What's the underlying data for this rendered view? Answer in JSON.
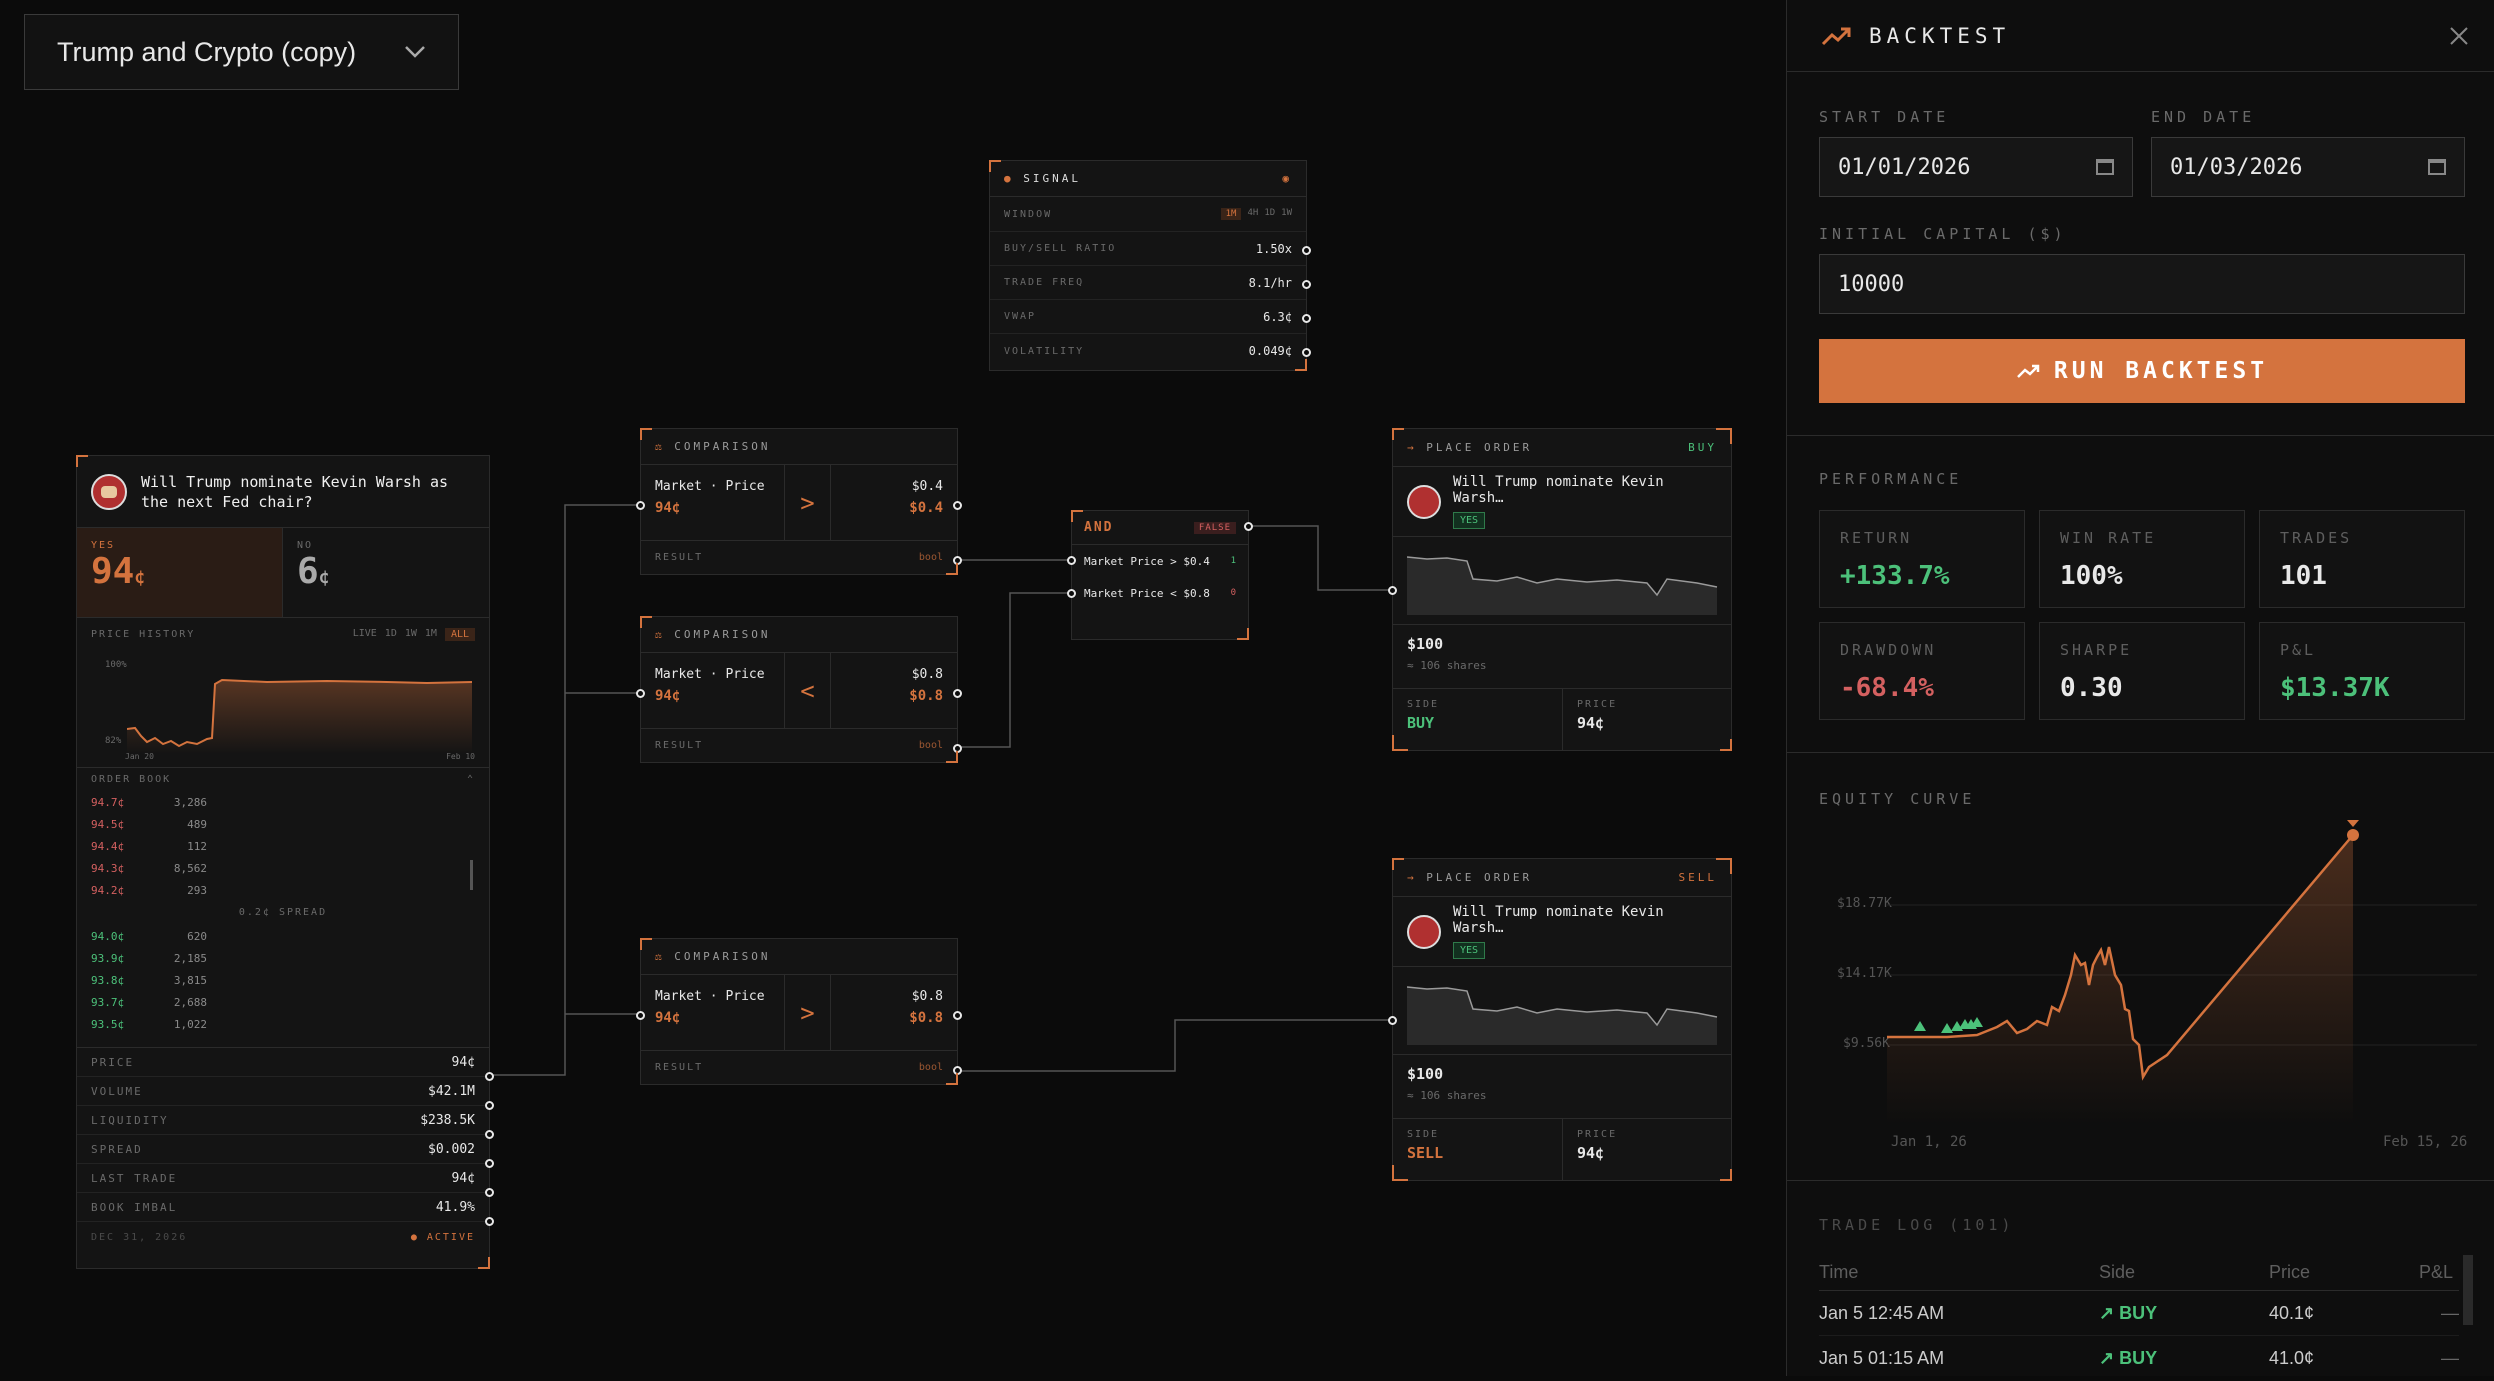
{
  "workflow": {
    "title": "Trump and Crypto (copy)"
  },
  "market": {
    "question": "Will Trump nominate Kevin Warsh as the next Fed chair?",
    "yes_label": "YES",
    "yes_price": "94",
    "no_label": "NO",
    "no_price": "6",
    "cents": "¢",
    "history_label": "PRICE HISTORY",
    "ranges": [
      "LIVE",
      "1D",
      "1W",
      "1M",
      "ALL"
    ],
    "y_top": "100%",
    "y_bot": "82%",
    "x_start": "Jan 20",
    "x_end": "Feb 10",
    "orderbook_label": "ORDER BOOK",
    "asks": [
      [
        "94.7¢",
        "3,286"
      ],
      [
        "94.5¢",
        "489"
      ],
      [
        "94.4¢",
        "112"
      ],
      [
        "94.3¢",
        "8,562"
      ],
      [
        "94.2¢",
        "293"
      ]
    ],
    "spread_label": "0.2¢ SPREAD",
    "bids": [
      [
        "94.0¢",
        "620"
      ],
      [
        "93.9¢",
        "2,185"
      ],
      [
        "93.8¢",
        "3,815"
      ],
      [
        "93.7¢",
        "2,688"
      ],
      [
        "93.5¢",
        "1,022"
      ]
    ],
    "stats": [
      [
        "PRICE",
        "94¢"
      ],
      [
        "VOLUME",
        "$42.1M"
      ],
      [
        "LIQUIDITY",
        "$238.5K"
      ],
      [
        "SPREAD",
        "$0.002"
      ],
      [
        "LAST TRADE",
        "94¢"
      ],
      [
        "BOOK IMBAL",
        "41.9%"
      ]
    ],
    "date": "DEC 31, 2026",
    "status": "ACTIVE"
  },
  "signal": {
    "title": "SIGNAL",
    "window_label": "WINDOW",
    "windows": [
      "1M",
      "4H",
      "1D",
      "1W"
    ],
    "rows": [
      [
        "BUY/SELL RATIO",
        "1.50x"
      ],
      [
        "TRADE FREQ",
        "8.1/hr"
      ],
      [
        "VWAP",
        "6.3¢"
      ],
      [
        "VOLATILITY",
        "0.049¢"
      ]
    ]
  },
  "comparisons": [
    {
      "title": "COMPARISON",
      "left": "Market · Price",
      "left_val": "94¢",
      "op": ">",
      "right": "$0.4",
      "right_val": "$0.4",
      "result": "RESULT",
      "type": "bool"
    },
    {
      "title": "COMPARISON",
      "left": "Market · Price",
      "left_val": "94¢",
      "op": "<",
      "right": "$0.8",
      "right_val": "$0.8",
      "result": "RESULT",
      "type": "bool"
    },
    {
      "title": "COMPARISON",
      "left": "Market · Price",
      "left_val": "94¢",
      "op": ">",
      "right": "$0.8",
      "right_val": "$0.8",
      "result": "RESULT",
      "type": "bool"
    }
  ],
  "and_node": {
    "title": "AND",
    "state": "FALSE",
    "c1": "Market Price > $0.4",
    "v1": "1",
    "c2": "Market Price < $0.8",
    "v2": "0"
  },
  "orders": [
    {
      "title": "PLACE ORDER",
      "side_tag": "BUY",
      "question": "Will Trump nominate Kevin Warsh…",
      "yes": "YES",
      "amount": "$100",
      "shares": "≈ 106 shares",
      "side_label": "SIDE",
      "side": "BUY",
      "price_label": "PRICE",
      "price": "94¢"
    },
    {
      "title": "PLACE ORDER",
      "side_tag": "SELL",
      "question": "Will Trump nominate Kevin Warsh…",
      "yes": "YES",
      "amount": "$100",
      "shares": "≈ 106 shares",
      "side_label": "SIDE",
      "side": "SELL",
      "price_label": "PRICE",
      "price": "94¢"
    }
  ],
  "backtest": {
    "title": "BACKTEST",
    "start_label": "START DATE",
    "start": "01/01/2026",
    "end_label": "END DATE",
    "end": "01/03/2026",
    "capital_label": "INITIAL CAPITAL ($)",
    "capital": "10000",
    "run": "RUN BACKTEST",
    "perf_label": "PERFORMANCE",
    "metrics": [
      [
        "RETURN",
        "+133.7%"
      ],
      [
        "WIN RATE",
        "100%"
      ],
      [
        "TRADES",
        "101"
      ],
      [
        "DRAWDOWN",
        "-68.4%"
      ],
      [
        "SHARPE",
        "0.30"
      ],
      [
        "P&L",
        "$13.37K"
      ]
    ],
    "equity_label": "EQUITY CURVE",
    "eq_y": [
      "$18.77K",
      "$14.17K",
      "$9.56K"
    ],
    "eq_x": [
      "Jan 1, 26",
      "Feb 15, 26"
    ],
    "log_label": "TRADE LOG (101)",
    "log_cols": [
      "Time",
      "Side",
      "Price",
      "P&L"
    ],
    "log_rows": [
      [
        "Jan 5 12:45 AM",
        "BUY",
        "40.1¢",
        "—"
      ],
      [
        "Jan 5 01:15 AM",
        "BUY",
        "41.0¢",
        "—"
      ]
    ]
  },
  "colors": {
    "accent": "#d4733e",
    "green": "#4cc17a",
    "red": "#d46060"
  }
}
